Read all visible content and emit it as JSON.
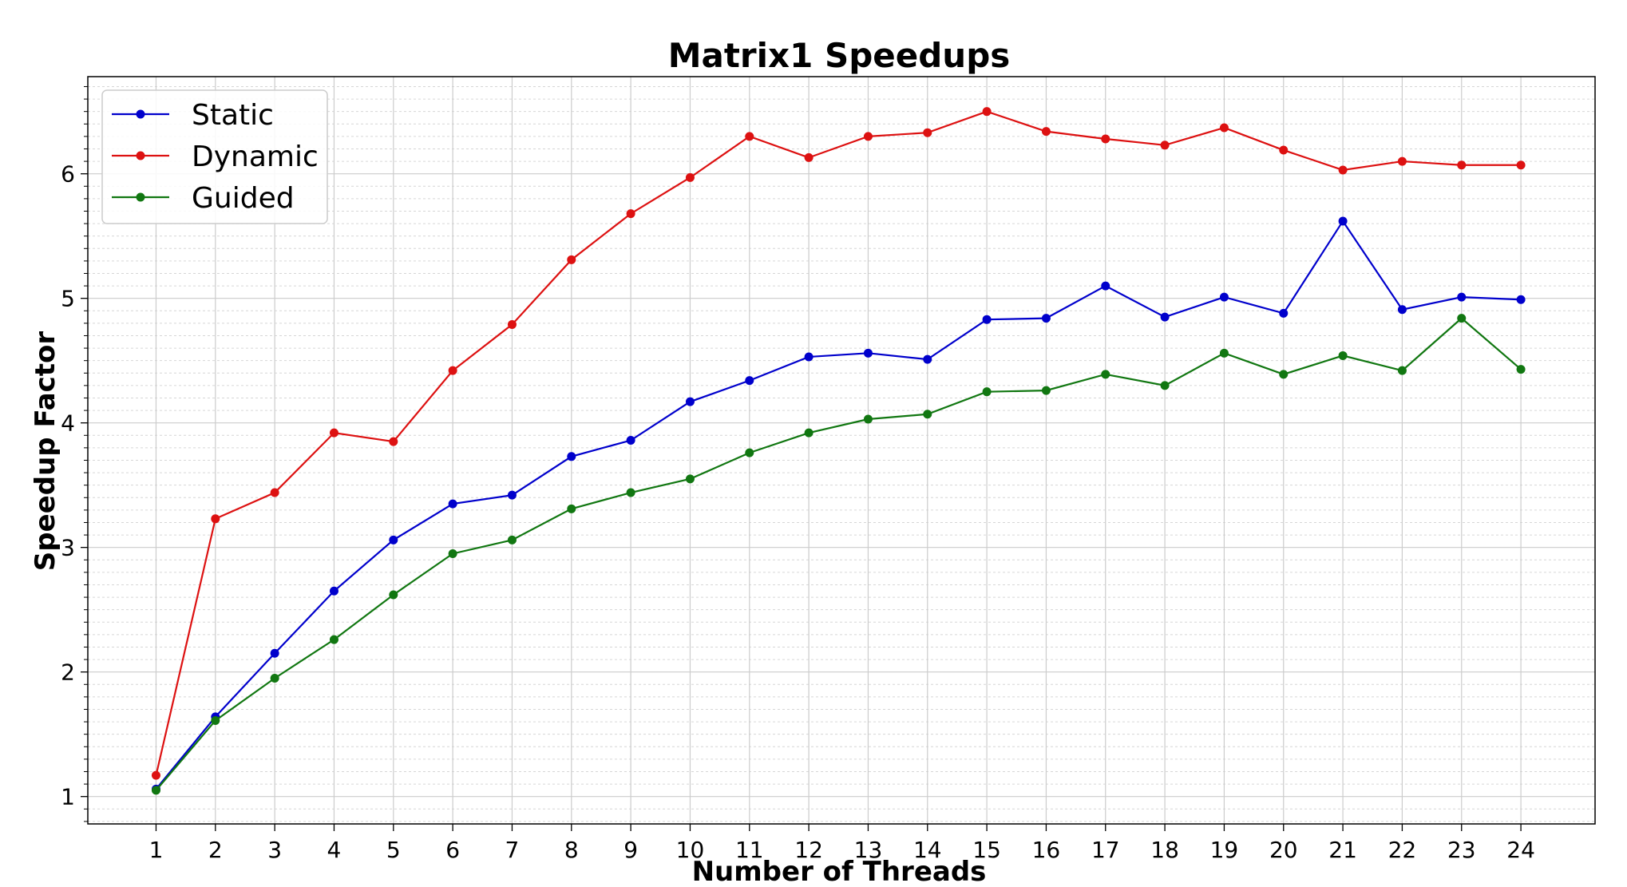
{
  "chart_data": {
    "type": "line",
    "title": "Matrix1 Speedups",
    "xlabel": "Number of Threads",
    "ylabel": "Speedup Factor",
    "x": [
      1,
      2,
      3,
      4,
      5,
      6,
      7,
      8,
      9,
      10,
      11,
      12,
      13,
      14,
      15,
      16,
      17,
      18,
      19,
      20,
      21,
      22,
      23,
      24
    ],
    "x_ticks": [
      "1",
      "2",
      "3",
      "4",
      "5",
      "6",
      "7",
      "8",
      "9",
      "10",
      "11",
      "12",
      "13",
      "14",
      "15",
      "16",
      "17",
      "18",
      "19",
      "20",
      "21",
      "22",
      "23",
      "24"
    ],
    "y_ticks": [
      "1",
      "2",
      "3",
      "4",
      "5",
      "6"
    ],
    "xlim": [
      -0.15,
      25.25
    ],
    "ylim": [
      0.78,
      6.78
    ],
    "grid": "major and minor",
    "legend_position": "top-left",
    "series": [
      {
        "name": "Static",
        "color": "#0000cc",
        "values": [
          1.06,
          1.64,
          2.15,
          2.65,
          3.06,
          3.35,
          3.42,
          3.73,
          3.86,
          4.17,
          4.34,
          4.53,
          4.56,
          4.51,
          4.83,
          4.84,
          5.1,
          4.85,
          5.01,
          4.88,
          5.62,
          4.91,
          5.01,
          4.99
        ]
      },
      {
        "name": "Dynamic",
        "color": "#dd1111",
        "values": [
          1.17,
          3.23,
          3.44,
          3.92,
          3.85,
          4.42,
          4.79,
          5.31,
          5.68,
          5.97,
          6.3,
          6.13,
          6.3,
          6.33,
          6.5,
          6.34,
          6.28,
          6.23,
          6.37,
          6.19,
          6.03,
          6.1,
          6.07,
          6.07
        ]
      },
      {
        "name": "Guided",
        "color": "#117711",
        "values": [
          1.05,
          1.61,
          1.95,
          2.26,
          2.62,
          2.95,
          3.06,
          3.31,
          3.44,
          3.55,
          3.76,
          3.92,
          4.03,
          4.07,
          4.25,
          4.26,
          4.39,
          4.3,
          4.56,
          4.39,
          4.54,
          4.42,
          4.84,
          4.43
        ]
      }
    ]
  }
}
